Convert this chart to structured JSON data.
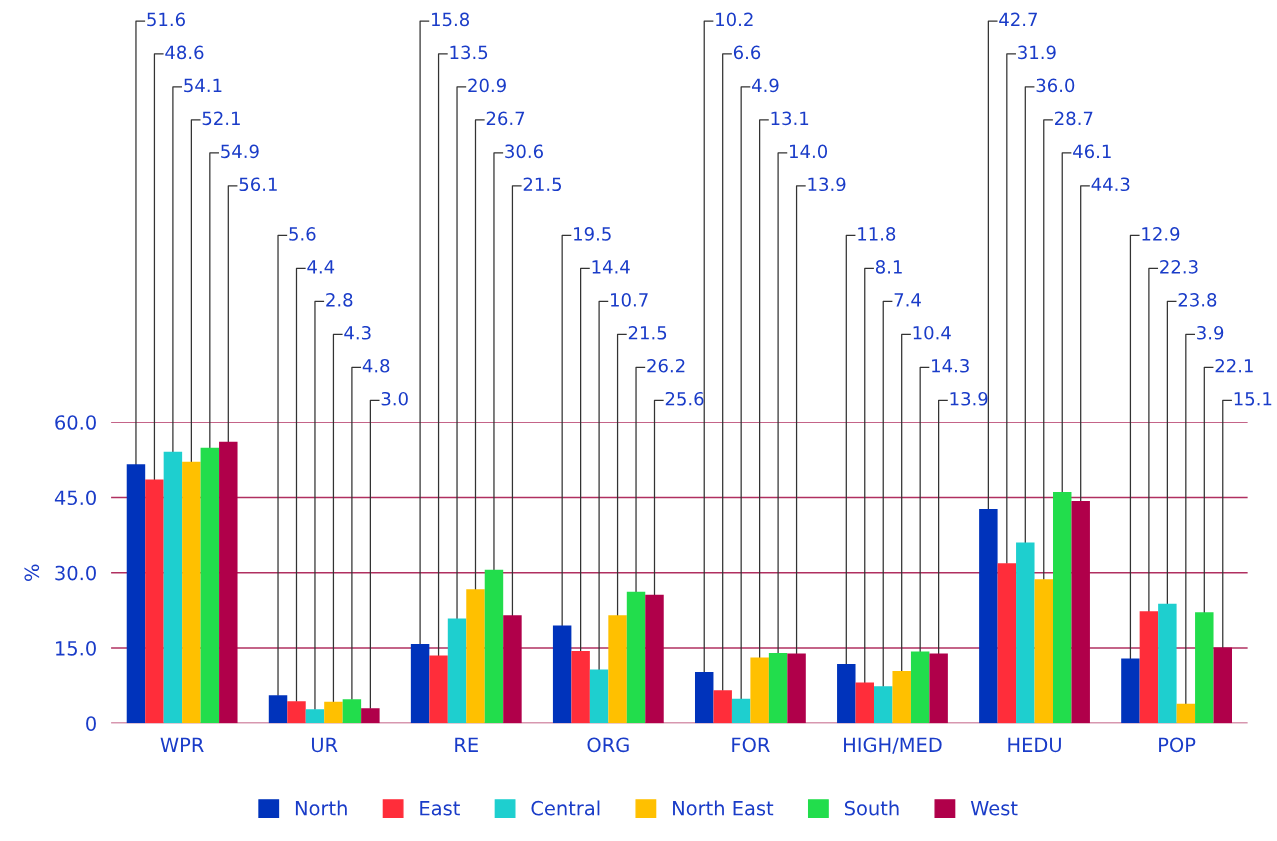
{
  "chart_data": {
    "type": "bar",
    "ylabel": "%",
    "categories": [
      "WPR",
      "UR",
      "RE",
      "ORG",
      "FOR",
      "HIGH/MED",
      "HEDU",
      "POP"
    ],
    "series": [
      {
        "name": "North",
        "color": "#0033bb",
        "values": [
          51.6,
          5.6,
          15.8,
          19.5,
          10.2,
          11.8,
          42.7,
          12.9
        ],
        "value_labels": [
          "51.6",
          "5.6",
          "15.8",
          "19.5",
          "10.2",
          "11.8",
          "42.7",
          "12.9"
        ]
      },
      {
        "name": "East",
        "color": "#ff2d3a",
        "values": [
          48.6,
          4.4,
          13.5,
          14.4,
          6.6,
          8.1,
          31.9,
          22.3
        ],
        "value_labels": [
          "48.6",
          "4.4",
          "13.5",
          "14.4",
          "6.6",
          "8.1",
          "31.9",
          "22.3"
        ]
      },
      {
        "name": "Central",
        "color": "#1ecfcf",
        "values": [
          54.1,
          2.8,
          20.9,
          10.7,
          4.9,
          7.4,
          36.0,
          23.8
        ],
        "value_labels": [
          "54.1",
          "2.8",
          "20.9",
          "10.7",
          "4.9",
          "7.4",
          "36.0",
          "23.8"
        ]
      },
      {
        "name": "North East",
        "color": "#ffc000",
        "values": [
          52.1,
          4.3,
          26.7,
          21.5,
          13.1,
          10.4,
          28.7,
          3.9
        ],
        "value_labels": [
          "52.1",
          "4.3",
          "26.7",
          "21.5",
          "13.1",
          "10.4",
          "28.7",
          "3.9"
        ]
      },
      {
        "name": "South",
        "color": "#22dd4c",
        "values": [
          54.9,
          4.8,
          30.6,
          26.2,
          14.0,
          14.3,
          46.1,
          22.1
        ],
        "value_labels": [
          "54.9",
          "4.8",
          "30.6",
          "26.2",
          "14.0",
          "14.3",
          "46.1",
          "22.1"
        ]
      },
      {
        "name": "West",
        "color": "#b0004a",
        "values": [
          56.1,
          3.0,
          21.5,
          25.6,
          13.9,
          13.9,
          44.3,
          15.1
        ],
        "value_labels": [
          "56.1",
          "3.0",
          "21.5",
          "25.6",
          "13.9",
          "13.9",
          "44.3",
          "15.1"
        ]
      }
    ],
    "ylim": [
      0,
      60
    ],
    "yticks": [
      0,
      {
        "value": 15,
        "label": "15.0"
      },
      {
        "value": 30,
        "label": "30.0"
      },
      {
        "value": 45,
        "label": "45.0"
      },
      {
        "value": 60,
        "label": "60.0"
      }
    ],
    "grid": "y",
    "legend": "bottom"
  }
}
